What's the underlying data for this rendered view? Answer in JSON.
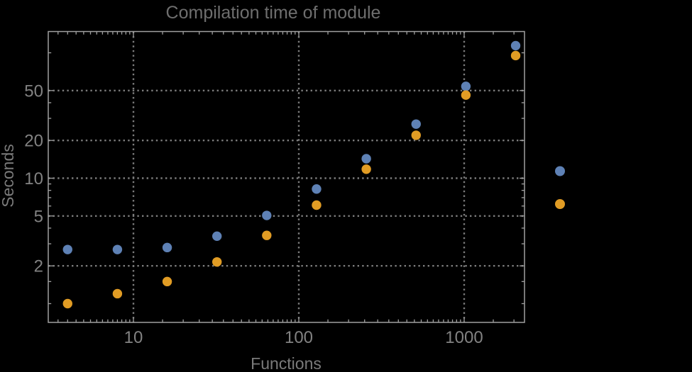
{
  "chart_data": {
    "type": "scatter",
    "title": "Compilation time of module",
    "xlabel": "Functions",
    "ylabel": "Seconds",
    "x_scale": "log",
    "y_scale": "log",
    "xlim": [
      3.07,
      2330
    ],
    "ylim": [
      0.715,
      147
    ],
    "grid": "dotted-at-major-ticks",
    "legend_position": "right-outside-unlabeled",
    "x_major_ticks": [
      10,
      100,
      1000
    ],
    "x_major_tick_labels": [
      "10",
      "100",
      "1000"
    ],
    "x_minor_tick_multiples": [
      1.5,
      2,
      2.5,
      3,
      3.5,
      4,
      4.5,
      5,
      5.5,
      6,
      6.5,
      7,
      7.5,
      8,
      8.5,
      9,
      9.5
    ],
    "y_major_ticks": [
      2,
      5,
      10,
      20,
      50
    ],
    "y_major_tick_labels": [
      "2",
      "5",
      "10",
      "20",
      "50"
    ],
    "y_minor_ticks": [
      1,
      1.5,
      3,
      4,
      6,
      7,
      8,
      9,
      30,
      40,
      100
    ],
    "series": [
      {
        "name": "series-1-blue",
        "color": "#5E81B5",
        "x": [
          4,
          8,
          16,
          32,
          64,
          128,
          256,
          512,
          1024,
          2048
        ],
        "y": [
          2.7,
          2.7,
          2.8,
          3.45,
          5.05,
          8.2,
          14.3,
          27,
          54,
          114
        ]
      },
      {
        "name": "series-2-orange",
        "color": "#E19C24",
        "x": [
          4,
          8,
          16,
          32,
          64,
          128,
          256,
          512,
          1024,
          2048
        ],
        "y": [
          1.0,
          1.2,
          1.5,
          2.15,
          3.5,
          6.1,
          11.8,
          22,
          46,
          95
        ]
      }
    ],
    "colors": {
      "background": "#000000",
      "frame": "#a0a0a0",
      "gridline": "#7c7c7c",
      "tick": "#a0a0a0",
      "tick_label": "#828282",
      "title": "#6e6e6e",
      "axis_label": "#7a7a7a"
    }
  }
}
